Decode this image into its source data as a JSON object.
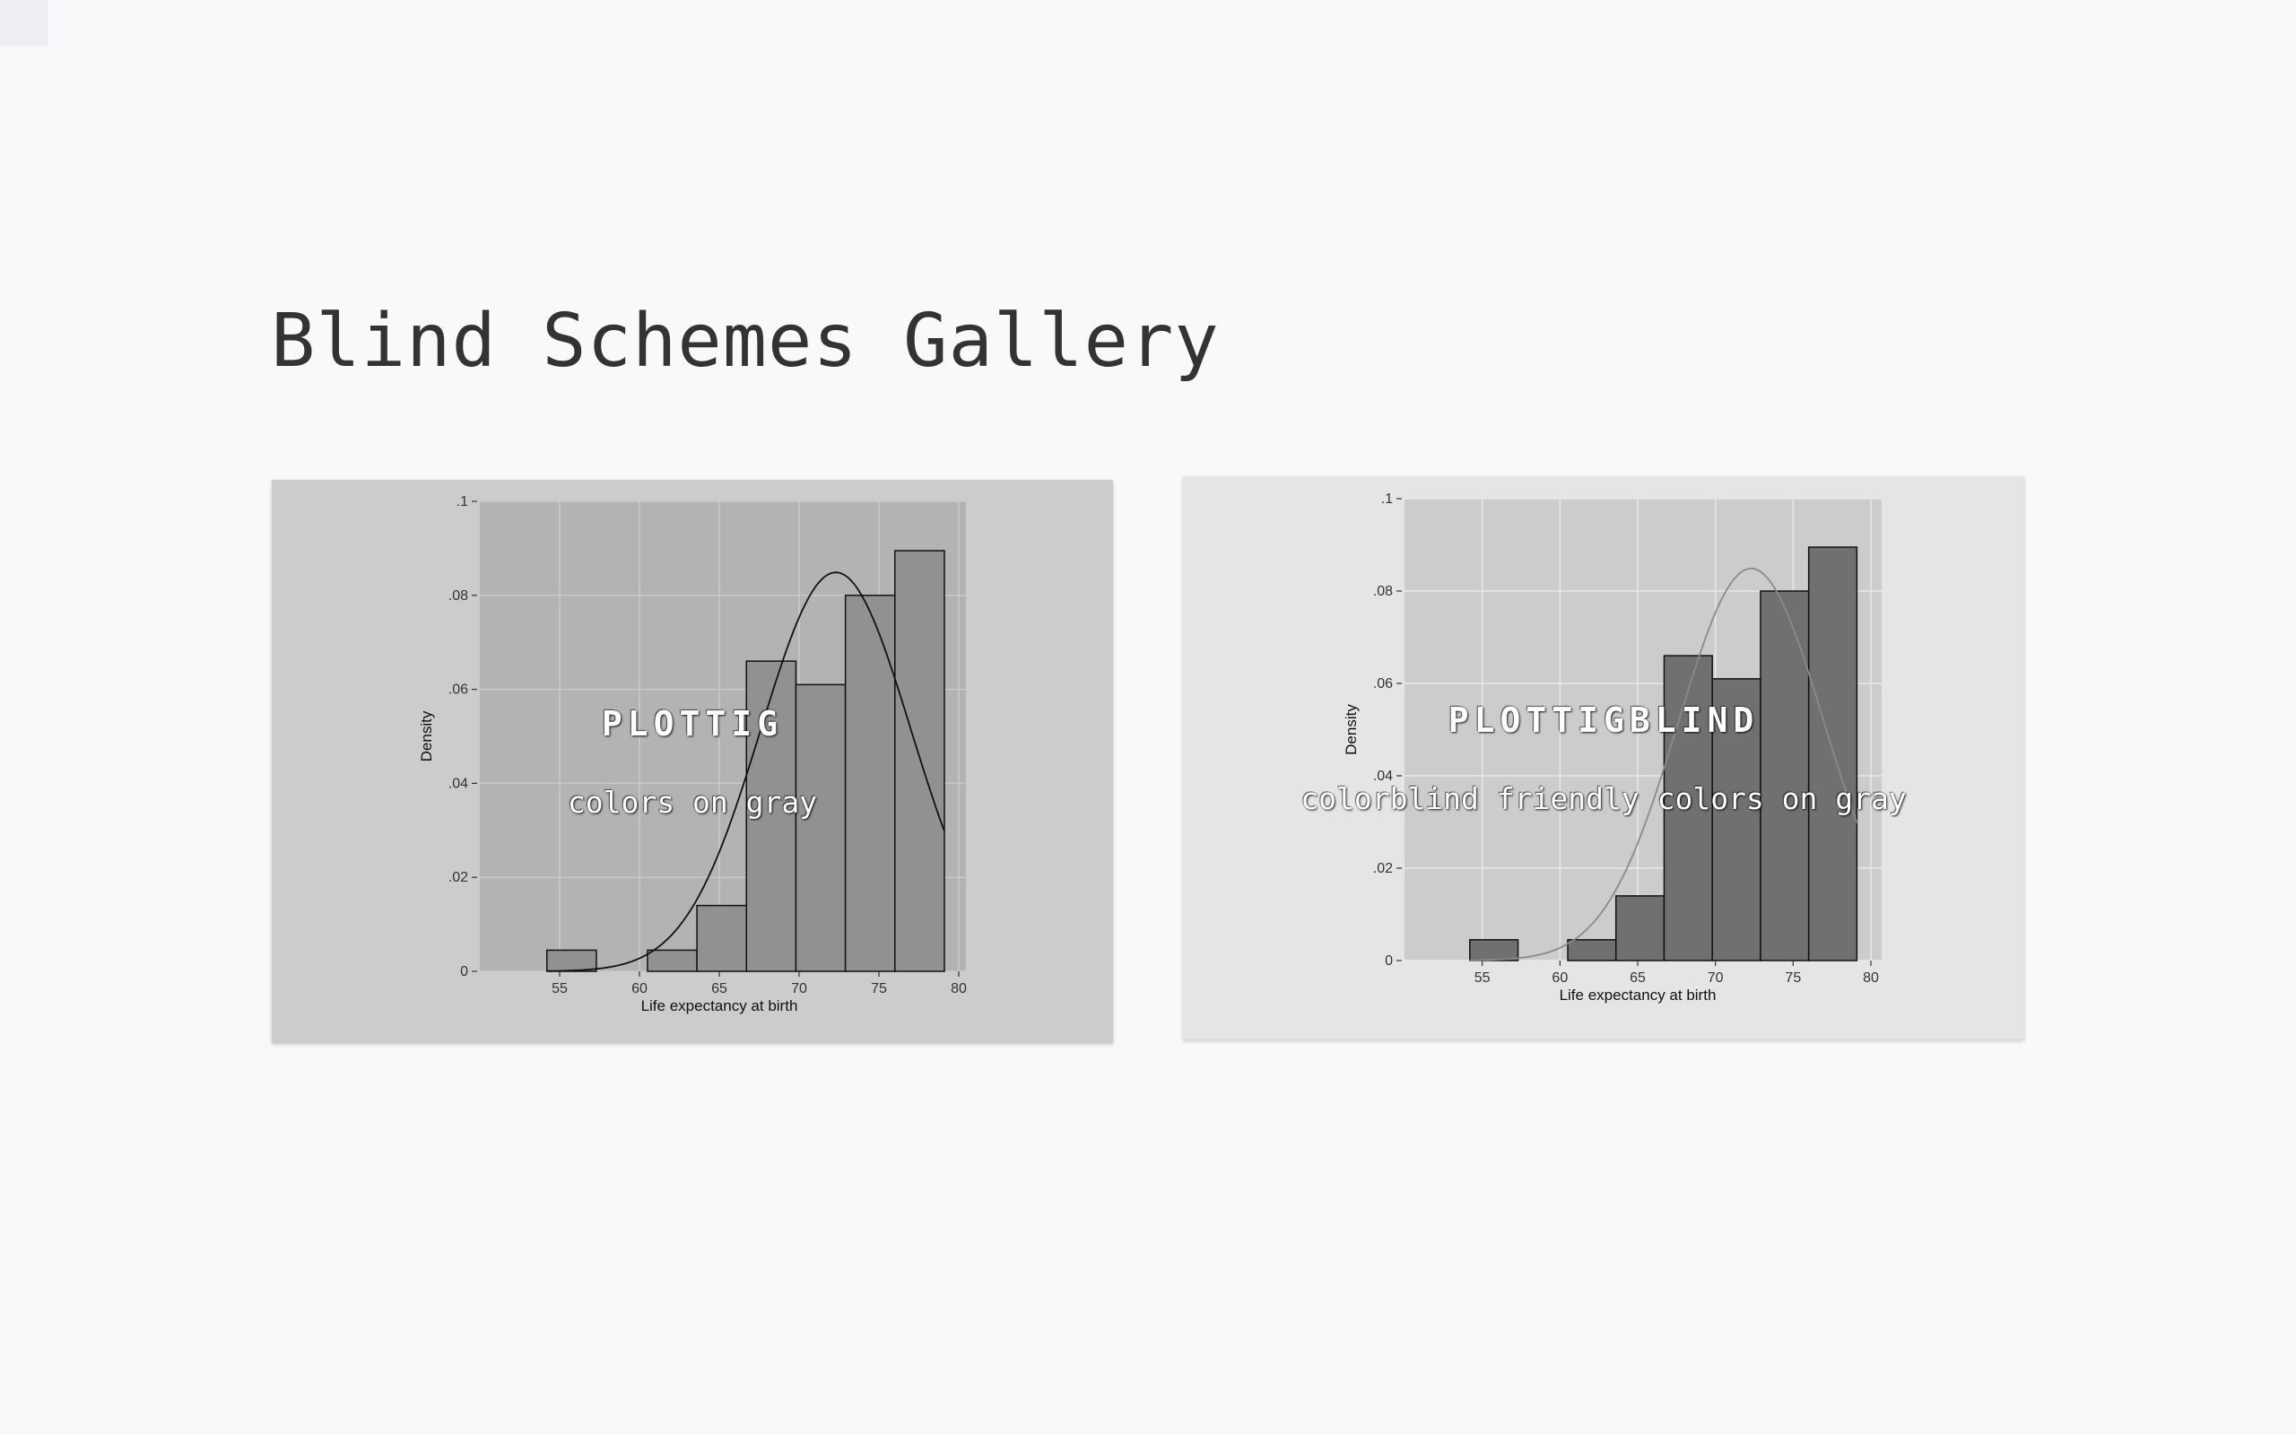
{
  "page": {
    "title": "Blind Schemes Gallery"
  },
  "colors": {
    "background": "#f8f9fb",
    "title": "#333333"
  },
  "cards": [
    {
      "name": "PLOTTIG",
      "description": "colors on gray",
      "colors": {
        "outer": "#cccccc",
        "plot": "#b3b3b3",
        "grid": "#c9c9c9",
        "bar": "#919191",
        "curve": "#111111"
      }
    },
    {
      "name": "PLOTTIGBLIND",
      "description": "colorblind friendly colors on gray",
      "colors": {
        "outer": "#e5e5e5",
        "plot": "#cccccc",
        "grid": "#e8e8e8",
        "bar": "#707070",
        "curve": "#8a8a8a"
      }
    }
  ],
  "chart_data": [
    {
      "type": "bar",
      "xlabel": "Life expectancy at birth",
      "ylabel": "Density",
      "xlim": [
        50,
        80
      ],
      "ylim": [
        0,
        0.1
      ],
      "x_ticks": [
        55,
        60,
        65,
        70,
        75,
        80
      ],
      "x_tick_labels": [
        "55",
        "60",
        "65",
        "70",
        "75",
        "80"
      ],
      "y_ticks": [
        0,
        0.02,
        0.04,
        0.06,
        0.08,
        0.1
      ],
      "y_tick_labels": [
        "0",
        ".02",
        ".04",
        ".06",
        ".08",
        ".1"
      ],
      "grid": true,
      "bins": [
        {
          "x0": 54.2,
          "x1": 57.3,
          "density": 0.0045
        },
        {
          "x0": 60.5,
          "x1": 63.6,
          "density": 0.0045
        },
        {
          "x0": 63.6,
          "x1": 66.7,
          "density": 0.014
        },
        {
          "x0": 66.7,
          "x1": 69.8,
          "density": 0.066
        },
        {
          "x0": 69.8,
          "x1": 72.9,
          "density": 0.061
        },
        {
          "x0": 72.9,
          "x1": 76.0,
          "density": 0.08
        },
        {
          "x0": 76.0,
          "x1": 79.1,
          "density": 0.0895
        }
      ],
      "normal_curve": {
        "mean": 72.3,
        "sd": 4.7,
        "x_range": [
          54.2,
          79.1
        ]
      }
    },
    {
      "type": "bar",
      "xlabel": "Life expectancy at birth",
      "ylabel": "Density",
      "xlim": [
        50,
        80
      ],
      "ylim": [
        0,
        0.1
      ],
      "x_ticks": [
        55,
        60,
        65,
        70,
        75,
        80
      ],
      "x_tick_labels": [
        "55",
        "60",
        "65",
        "70",
        "75",
        "80"
      ],
      "y_ticks": [
        0,
        0.02,
        0.04,
        0.06,
        0.08,
        0.1
      ],
      "y_tick_labels": [
        "0",
        ".02",
        ".04",
        ".06",
        ".08",
        ".1"
      ],
      "grid": true,
      "bins": [
        {
          "x0": 54.2,
          "x1": 57.3,
          "density": 0.0045
        },
        {
          "x0": 60.5,
          "x1": 63.6,
          "density": 0.0045
        },
        {
          "x0": 63.6,
          "x1": 66.7,
          "density": 0.014
        },
        {
          "x0": 66.7,
          "x1": 69.8,
          "density": 0.066
        },
        {
          "x0": 69.8,
          "x1": 72.9,
          "density": 0.061
        },
        {
          "x0": 72.9,
          "x1": 76.0,
          "density": 0.08
        },
        {
          "x0": 76.0,
          "x1": 79.1,
          "density": 0.0895
        }
      ],
      "normal_curve": {
        "mean": 72.3,
        "sd": 4.7,
        "x_range": [
          54.2,
          79.1
        ]
      }
    }
  ]
}
